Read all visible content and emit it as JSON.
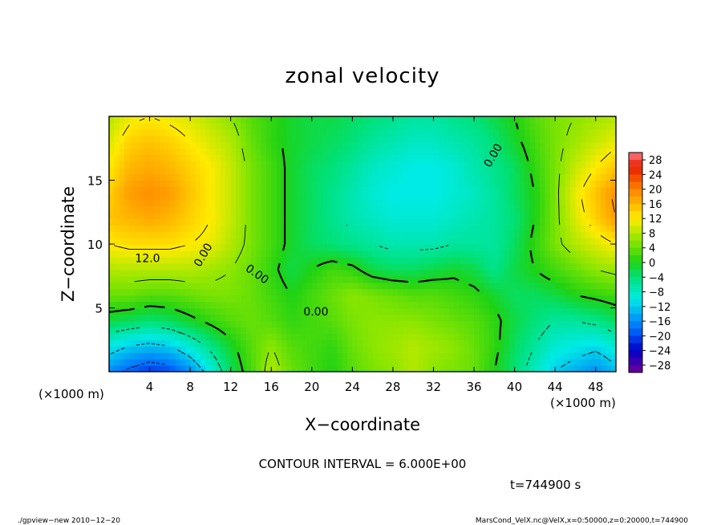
{
  "chart_data": {
    "type": "heatmap",
    "title": "zonal velocity",
    "xlabel": "X−coordinate",
    "ylabel": "Z−coordinate",
    "x_unit": "(×1000 m)",
    "y_unit": "(×1000 m)",
    "xlim": [
      0,
      50
    ],
    "ylim": [
      0,
      20
    ],
    "x_ticks": [
      "4",
      "8",
      "12",
      "16",
      "20",
      "24",
      "28",
      "32",
      "36",
      "40",
      "44",
      "48"
    ],
    "x_tick_values": [
      4,
      8,
      12,
      16,
      20,
      24,
      28,
      32,
      36,
      40,
      44,
      48
    ],
    "y_ticks": [
      "5",
      "10",
      "15"
    ],
    "y_tick_values": [
      5,
      10,
      15
    ],
    "colorbar_labels": [
      "28",
      "24",
      "20",
      "16",
      "12",
      "8",
      "4",
      "0",
      "−4",
      "−8",
      "−12",
      "−16",
      "−20",
      "−24",
      "−28"
    ],
    "colorbar_range": [
      -30,
      30
    ],
    "contour_interval": 6.0,
    "contour_labels": [
      "12.0",
      "0.00",
      "0.00",
      "0.00",
      "0.00"
    ],
    "grid_x": [
      0,
      2,
      4,
      6,
      8,
      10,
      12,
      14,
      16,
      18,
      20,
      22,
      24,
      26,
      28,
      30,
      32,
      34,
      36,
      38,
      40,
      42,
      44,
      46,
      48,
      50
    ],
    "grid_y": [
      0,
      2,
      4,
      6,
      8,
      10,
      12,
      14,
      16,
      18,
      20
    ],
    "values": [
      [
        -16,
        -19,
        -21,
        -20,
        -16,
        -10,
        -3,
        2,
        8,
        4,
        2,
        0,
        3,
        5,
        6,
        8,
        6,
        5,
        4,
        0,
        -4,
        -8,
        -12,
        -14,
        -16,
        -13
      ],
      [
        -10,
        -12,
        -13,
        -12,
        -9,
        -5,
        -1,
        3,
        6,
        3,
        2,
        1,
        4,
        6,
        7,
        8,
        7,
        6,
        4,
        1,
        -3,
        -6,
        -9,
        -10,
        -11,
        -9
      ],
      [
        -2,
        -3,
        -4,
        -3,
        -1,
        1,
        3,
        4,
        3,
        1,
        2,
        3,
        5,
        6,
        6,
        6,
        5,
        4,
        3,
        1,
        -2,
        -4,
        -6,
        -6,
        -5,
        -3
      ],
      [
        4,
        4,
        3,
        3,
        4,
        5,
        5,
        4,
        2,
        0,
        2,
        4,
        6,
        5,
        4,
        3,
        3,
        2,
        1,
        -1,
        -3,
        -3,
        -2,
        0,
        1,
        2
      ],
      [
        8,
        8,
        8,
        8,
        8,
        7,
        6,
        4,
        1,
        -2,
        0,
        2,
        1,
        -2,
        -3,
        -3,
        -2,
        -1,
        -2,
        -5,
        -2,
        0,
        2,
        4,
        6,
        7
      ],
      [
        12,
        13,
        13,
        13,
        12,
        11,
        8,
        5,
        2,
        -1,
        -3,
        -4,
        -5,
        -6,
        -7,
        -7,
        -7,
        -6,
        -6,
        -6,
        -3,
        1,
        5,
        8,
        10,
        12
      ],
      [
        15,
        16,
        17,
        16,
        14,
        12,
        9,
        5,
        2,
        -1,
        -3,
        -5,
        -7,
        -8,
        -9,
        -9,
        -9,
        -8,
        -7,
        -6,
        -4,
        0,
        5,
        10,
        14,
        18
      ],
      [
        14,
        18,
        19,
        18,
        15,
        12,
        9,
        5,
        2,
        -1,
        -3,
        -5,
        -7,
        -9,
        -10,
        -10,
        -10,
        -9,
        -8,
        -6,
        -3,
        0,
        5,
        11,
        15,
        19
      ],
      [
        12,
        16,
        17,
        16,
        14,
        12,
        9,
        5,
        2,
        -1,
        -3,
        -4,
        -6,
        -8,
        -9,
        -10,
        -10,
        -9,
        -7,
        -5,
        -3,
        1,
        5,
        9,
        12,
        15
      ],
      [
        10,
        14,
        15,
        14,
        12,
        10,
        8,
        4,
        1,
        -1,
        -2,
        -3,
        -4,
        -6,
        -7,
        -8,
        -8,
        -7,
        -6,
        -4,
        -1,
        2,
        5,
        7,
        9,
        11
      ],
      [
        8,
        11,
        12,
        11,
        10,
        8,
        6,
        3,
        1,
        -1,
        -2,
        -2,
        -3,
        -4,
        -5,
        -6,
        -6,
        -5,
        -4,
        -2,
        0,
        3,
        5,
        6,
        7,
        8
      ]
    ]
  },
  "labels": {
    "contour_interval": "CONTOUR INTERVAL = 6.000E+00",
    "time": "t=744900 s",
    "footer_left": "./gpview−new   2010−12−20",
    "footer_right": "MarsCond_VelX.nc@VelX,x=0:50000,z=0:20000,t=744900"
  },
  "colors": {
    "background": "#ffffff",
    "frame": "#000000"
  }
}
